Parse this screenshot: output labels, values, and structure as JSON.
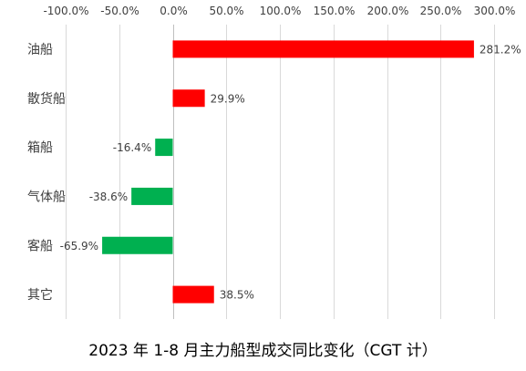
{
  "chart_data": {
    "type": "bar",
    "orientation": "horizontal",
    "title": "2023 年 1-8 月主力船型成交同比变化（CGT 计）",
    "categories": [
      "油船",
      "散货船",
      "箱船",
      "气体船",
      "客船",
      "其它"
    ],
    "values": [
      281.2,
      29.9,
      -16.4,
      -38.6,
      -65.9,
      38.5
    ],
    "value_labels": [
      "281.2%",
      "29.9%",
      "-16.4%",
      "-38.6%",
      "-65.9%",
      "38.5%"
    ],
    "xlim": [
      -100,
      300
    ],
    "x_ticks": [
      -100,
      -50,
      0,
      50,
      100,
      150,
      200,
      250,
      300
    ],
    "x_tick_labels": [
      "-100.0%",
      "-50.0%",
      "0.0%",
      "50.0%",
      "100.0%",
      "150.0%",
      "200.0%",
      "250.0%",
      "300.0%"
    ],
    "x_axis_position": "top",
    "grid": true,
    "colors": {
      "positive": "#ff0000",
      "negative": "#00b050"
    }
  }
}
